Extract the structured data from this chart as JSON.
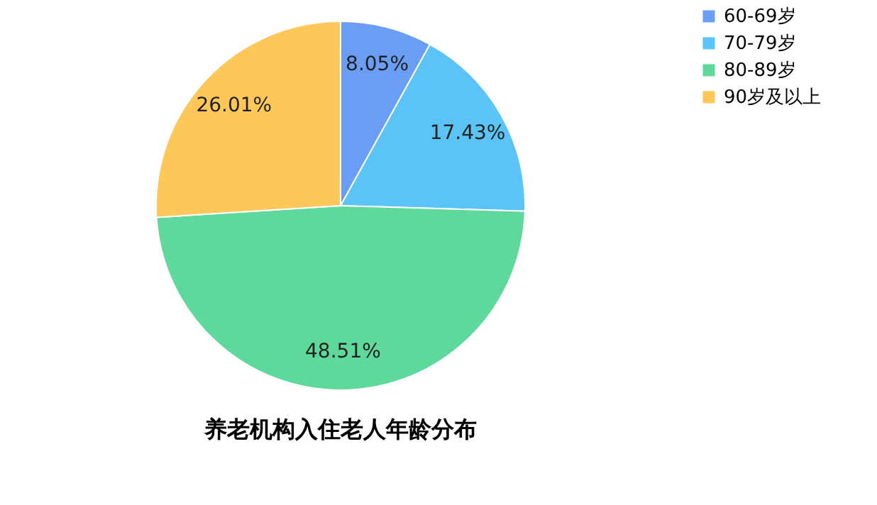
{
  "chart_data": {
    "type": "pie",
    "title": "养老机构入住老人年龄分布",
    "categories": [
      "60-69岁",
      "70-79岁",
      "80-89岁",
      "90岁及以上"
    ],
    "values": [
      8.05,
      17.43,
      48.51,
      26.01
    ],
    "colors": [
      "#6a9ef5",
      "#5bc3f5",
      "#5ed99b",
      "#fdc75a"
    ],
    "value_labels": [
      "8.05%",
      "17.43%",
      "48.51%",
      "26.01%"
    ],
    "legend": "right"
  }
}
